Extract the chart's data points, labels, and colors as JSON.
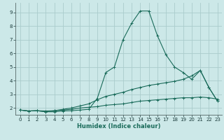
{
  "xlabel": "Humidex (Indice chaleur)",
  "bg_color": "#cce8e8",
  "grid_color": "#aacccc",
  "line_color": "#1a6b5a",
  "xlim": [
    -0.5,
    23.5
  ],
  "ylim": [
    1.5,
    9.7
  ],
  "xticks": [
    0,
    1,
    2,
    3,
    4,
    5,
    6,
    7,
    8,
    9,
    10,
    11,
    12,
    13,
    14,
    15,
    16,
    17,
    18,
    19,
    20,
    21,
    22,
    23
  ],
  "yticks": [
    2,
    3,
    4,
    5,
    6,
    7,
    8,
    9
  ],
  "series1_x": [
    0,
    1,
    2,
    3,
    4,
    5,
    6,
    7,
    8,
    9,
    10,
    11,
    12,
    13,
    14,
    15,
    16,
    17,
    18,
    19,
    20,
    21,
    22,
    23
  ],
  "series1_y": [
    1.85,
    1.78,
    1.8,
    1.72,
    1.72,
    1.78,
    1.8,
    1.85,
    1.9,
    2.7,
    4.6,
    5.0,
    7.0,
    8.2,
    9.1,
    9.1,
    7.3,
    5.9,
    5.0,
    4.6,
    4.1,
    4.75,
    3.5,
    2.5
  ],
  "series2_x": [
    0,
    1,
    2,
    3,
    4,
    5,
    6,
    7,
    8,
    9,
    10,
    11,
    12,
    13,
    14,
    15,
    16,
    17,
    18,
    19,
    20,
    21,
    22,
    23
  ],
  "series2_y": [
    1.85,
    1.78,
    1.8,
    1.72,
    1.8,
    1.9,
    2.0,
    2.15,
    2.3,
    2.6,
    2.85,
    3.0,
    3.15,
    3.35,
    3.5,
    3.65,
    3.75,
    3.85,
    3.95,
    4.1,
    4.35,
    4.75,
    3.5,
    2.5
  ],
  "series3_x": [
    0,
    1,
    2,
    3,
    4,
    5,
    6,
    7,
    8,
    9,
    10,
    11,
    12,
    13,
    14,
    15,
    16,
    17,
    18,
    19,
    20,
    21,
    22,
    23
  ],
  "series3_y": [
    1.85,
    1.78,
    1.8,
    1.78,
    1.8,
    1.85,
    1.9,
    2.0,
    2.05,
    2.1,
    2.2,
    2.25,
    2.3,
    2.4,
    2.5,
    2.55,
    2.6,
    2.65,
    2.7,
    2.75,
    2.75,
    2.8,
    2.75,
    2.65
  ],
  "tick_fontsize": 5.0,
  "xlabel_fontsize": 6.0,
  "marker_size": 1.8,
  "line_width": 0.8
}
